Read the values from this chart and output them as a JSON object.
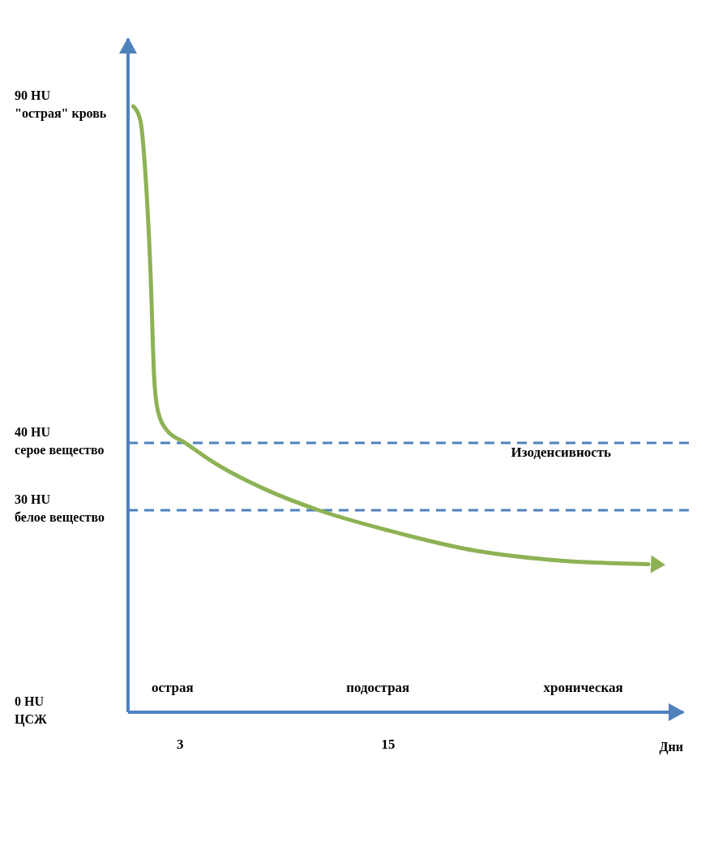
{
  "chart_data": {
    "type": "line",
    "xlabel": "Дни",
    "xlim": [
      0,
      32
    ],
    "xticks": [
      3,
      15
    ],
    "ylim": [
      0,
      100
    ],
    "yticks": [
      {
        "value": 0,
        "label": "0 HU\nЦСЖ"
      },
      {
        "value": 30,
        "label": "30 HU\nбелое вещество"
      },
      {
        "value": 40,
        "label": "40 HU\nсерое вещество"
      },
      {
        "value": 90,
        "label": "90 HU\n\"острая\" кровь"
      }
    ],
    "series": [
      {
        "color": "#8db255",
        "x": [
          0.3,
          0.7,
          1.0,
          1.3,
          1.5,
          1.7,
          2.2,
          3.3,
          5,
          8,
          11,
          15,
          20,
          25,
          30
        ],
        "values": [
          90,
          88,
          80,
          65,
          50,
          45,
          42,
          40,
          37,
          33,
          30,
          27,
          24,
          22.5,
          22
        ]
      }
    ],
    "ref_lines": [
      {
        "axis": "y",
        "value": 40,
        "color": "#4f81bd",
        "line_style": "dashed"
      },
      {
        "axis": "y",
        "value": 30,
        "color": "#4f81bd",
        "line_style": "dashed"
      }
    ],
    "annotations": [
      "острая",
      "подострая",
      "хроническая",
      "Изоденсивность"
    ],
    "grid": false,
    "marker": "none",
    "line_style": "solid"
  }
}
